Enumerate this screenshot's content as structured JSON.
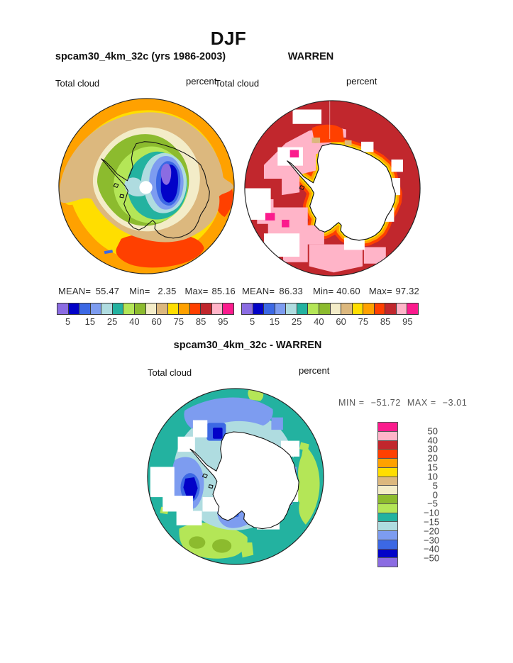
{
  "title": "DJF",
  "panels": {
    "model": {
      "header": "spcam30_4km_32c (yrs 1986-2003)",
      "field_label": "Total cloud",
      "units_label": "percent",
      "stats": {
        "mean_label": "MEAN=",
        "mean": "55.47",
        "min_label": "Min=",
        "min": "2.35",
        "max_label": "Max=",
        "max": "85.16"
      }
    },
    "obs": {
      "header": "WARREN",
      "field_label": "Total cloud",
      "units_label": "percent",
      "stats": {
        "mean_label": "MEAN=",
        "mean": "86.33",
        "min_label": "Min=",
        "min": "40.60",
        "max_label": "Max=",
        "max": "97.32"
      }
    },
    "diff": {
      "header": "spcam30_4km_32c - WARREN",
      "field_label": "Total cloud",
      "units_label": "percent",
      "stats": {
        "min_label": "MIN =",
        "min": "−51.72",
        "max_label": "MAX =",
        "max": "−3.01"
      }
    }
  },
  "colorbar": {
    "palette": [
      "#8B6CE2",
      "#0202C8",
      "#3C68E4",
      "#7D9CF0",
      "#AFDCE0",
      "#23B2A0",
      "#B4E657",
      "#8CBB2E",
      "#F3ECC8",
      "#DCB87E",
      "#FFDE00",
      "#FFA100",
      "#FF4000",
      "#C1272D",
      "#FFB4C8",
      "#FB1B8D"
    ],
    "tick_labels": [
      "5",
      "15",
      "25",
      "40",
      "60",
      "75",
      "85",
      "95"
    ]
  },
  "diff_colorbar": {
    "tick_labels": [
      "50",
      "40",
      "30",
      "20",
      "15",
      "10",
      "5",
      "0",
      "−5",
      "−10",
      "−15",
      "−20",
      "−30",
      "−40",
      "−50"
    ]
  },
  "chart_data": [
    {
      "type": "contour-map",
      "projection": "south-polar-stereographic",
      "region": "Antarctica / Southern Hemisphere",
      "season": "DJF",
      "title": "spcam30_4km_32c (yrs 1986-2003)",
      "variable": "Total cloud",
      "units": "percent",
      "mean": 55.47,
      "min": 2.35,
      "max": 85.16,
      "contour_levels": [
        5,
        10,
        15,
        20,
        25,
        30,
        40,
        50,
        60,
        70,
        75,
        80,
        85,
        90,
        95
      ],
      "labeled_levels": [
        5,
        15,
        25,
        40,
        60,
        75,
        85,
        95
      ],
      "legend_position": "bottom",
      "pattern_note": "high cloud (orange/yellow 60-95%) over Southern Ocean decreasing to minimum (blue/purple 5-15%) over East Antarctic interior; white dot at pole"
    },
    {
      "type": "contour-map",
      "projection": "south-polar-stereographic",
      "region": "Antarctica / Southern Hemisphere",
      "season": "DJF",
      "title": "WARREN",
      "variable": "Total cloud",
      "units": "percent",
      "mean": 86.33,
      "min": 40.6,
      "max": 97.32,
      "contour_levels": [
        5,
        10,
        15,
        20,
        25,
        30,
        40,
        50,
        60,
        70,
        75,
        80,
        85,
        90,
        95
      ],
      "labeled_levels": [
        5,
        15,
        25,
        40,
        60,
        75,
        85,
        95
      ],
      "legend_position": "bottom",
      "pattern_note": "dark red (>90%) ocean ring with pink (85-90%) blocky patches; no data (white) over Antarctic interior; orange/yellow fringe at coast"
    },
    {
      "type": "contour-map",
      "projection": "south-polar-stereographic",
      "region": "Antarctica / Southern Hemisphere",
      "season": "DJF",
      "title": "spcam30_4km_32c - WARREN",
      "variable": "Total cloud",
      "units": "percent",
      "min": -51.72,
      "max": -3.01,
      "contour_levels": [
        -50,
        -40,
        -30,
        -20,
        -15,
        -10,
        -5,
        0,
        5,
        10,
        15,
        20,
        30,
        40,
        50
      ],
      "legend_position": "right",
      "pattern_note": "model minus observations: mostly negative (teal -10 to -15, blue patches -20 to -50 near coast, light green -5 to 0 at outer edge)"
    }
  ]
}
